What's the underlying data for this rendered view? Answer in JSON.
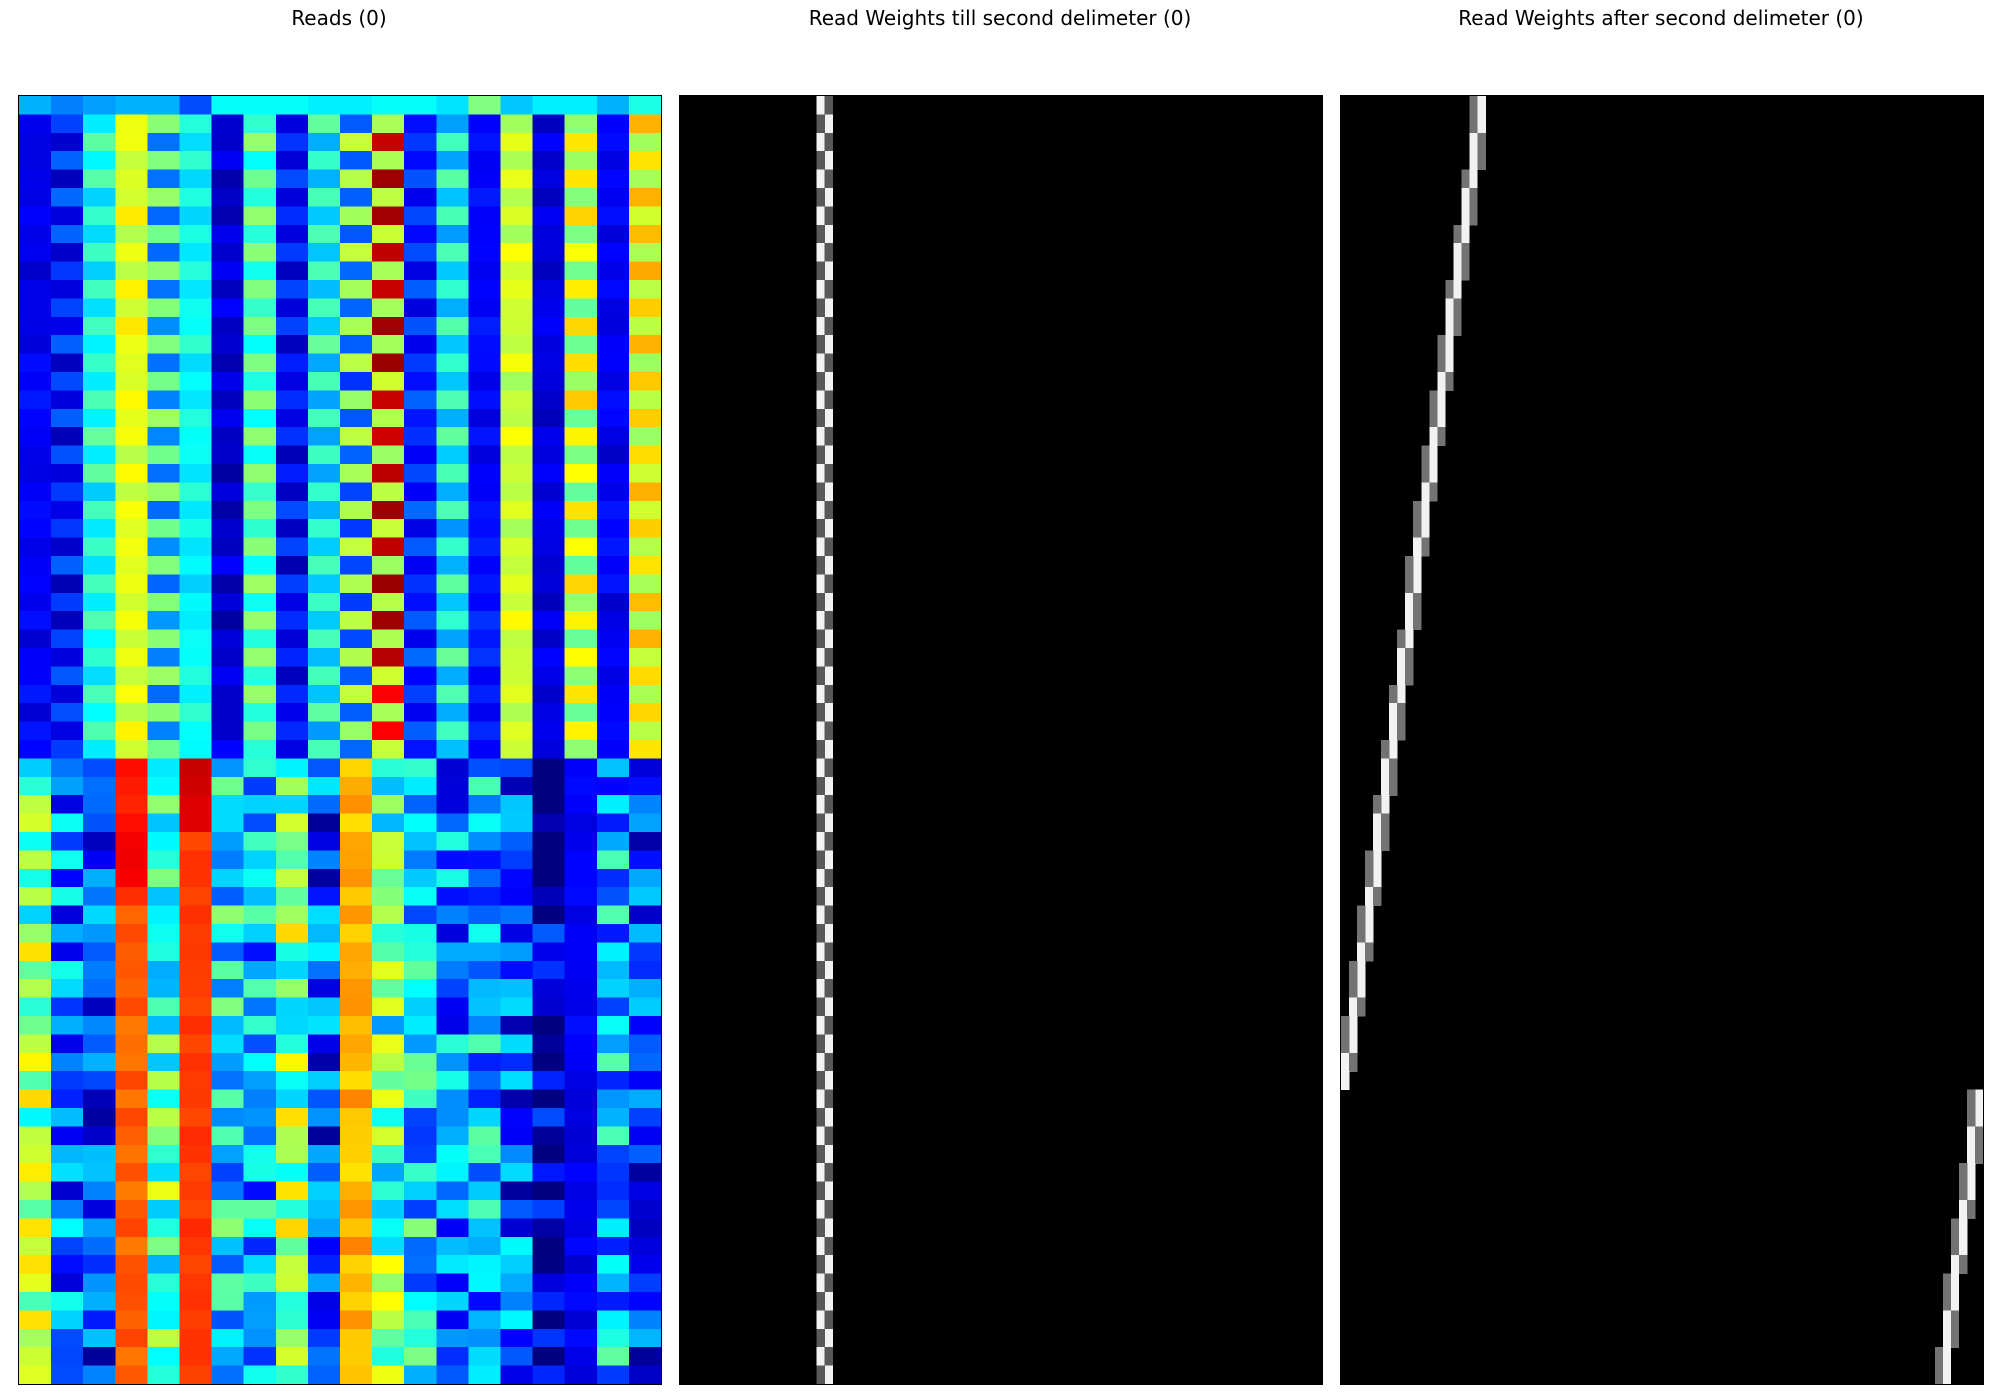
{
  "figure": {
    "panels": [
      {
        "title": "Reads (0)"
      },
      {
        "title": "Read Weights till second delimeter (0)"
      },
      {
        "title": "Read Weights after second delimeter (0)"
      }
    ]
  },
  "chart_data": [
    {
      "type": "heatmap",
      "title": "Reads (0)",
      "colormap": "jet",
      "rows": 70,
      "cols": 20,
      "notes_rows": "rows 0-35: periodic pattern (period 2); rows 36-69: columns 3,5,10 high",
      "value_range": [
        0,
        1
      ]
    },
    {
      "type": "heatmap",
      "title": "Read Weights till second delimeter (0)",
      "colormap": "gray",
      "rows": 70,
      "cols": 80,
      "peak_column_by_row": "constant ≈ 17-18 (alternating)",
      "value_range": [
        0,
        1
      ]
    },
    {
      "type": "heatmap",
      "title": "Read Weights after second delimeter (0)",
      "colormap": "gray",
      "rows": 70,
      "cols": 80,
      "peak_column_by_row": "decreases from ≈ 17 (row 0) to ≈ 0 (row 53), then wraps to ≈ 79 and decreases to ≈ 75 (row 69)",
      "value_range": [
        0,
        1
      ]
    }
  ]
}
